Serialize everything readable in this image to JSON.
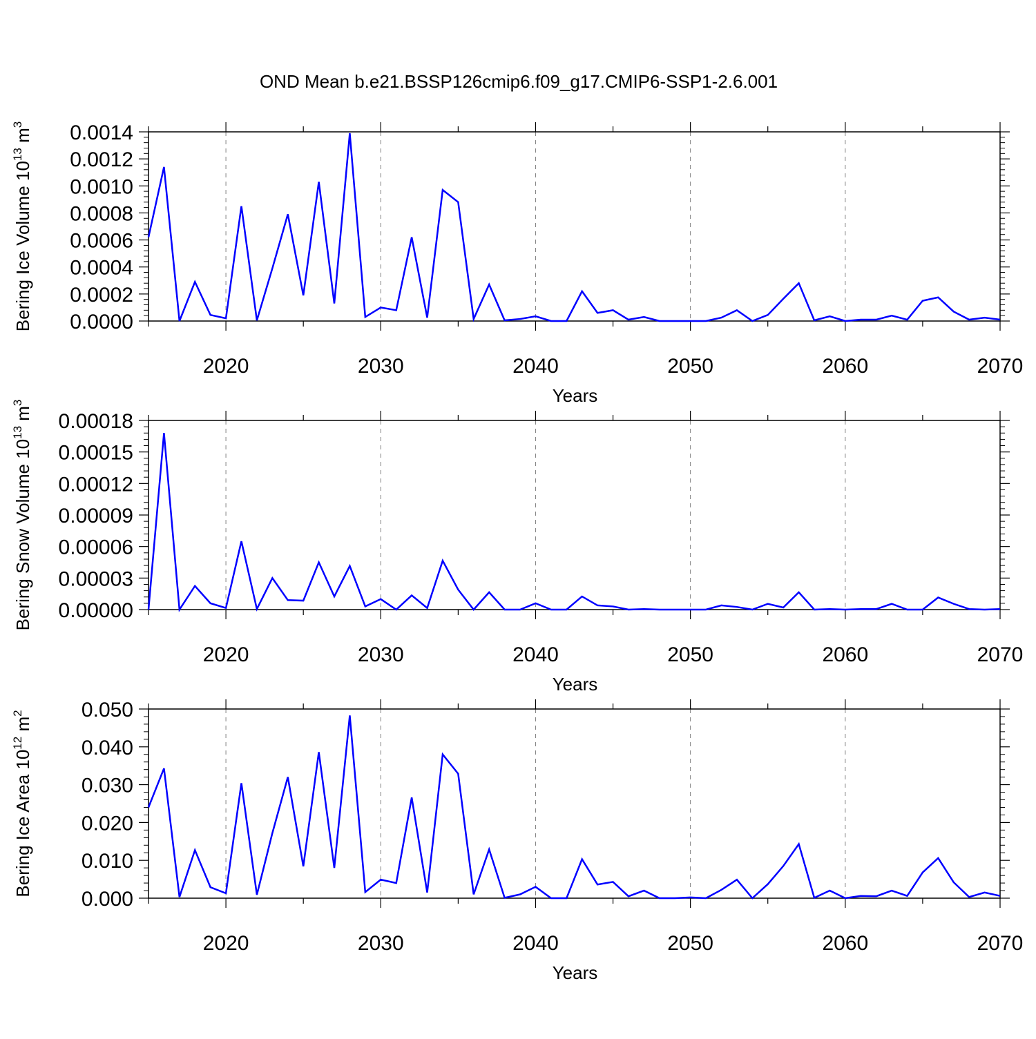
{
  "title": "OND Mean b.e21.BSSP126cmip6.f09_g17.CMIP6-SSP1-2.6.001",
  "colors": {
    "line": "#0000ff",
    "axis": "#000000",
    "grid": "#808080"
  },
  "chart_data": [
    {
      "type": "line",
      "ylabel": {
        "text": "Bering Ice Volume 10",
        "exp": "13",
        "unit": "m",
        "unit_exp": "3"
      },
      "xlabel": "Years",
      "xlim": [
        2015,
        2070
      ],
      "ylim": [
        0,
        0.0014
      ],
      "xticks": [
        2020,
        2030,
        2040,
        2050,
        2060,
        2070
      ],
      "xtick_labels": [
        "2020",
        "2030",
        "2040",
        "2050",
        "2060",
        "2070"
      ],
      "yticks": [
        0,
        0.0002,
        0.0004,
        0.0006,
        0.0008,
        0.001,
        0.0012,
        0.0014
      ],
      "ytick_labels": [
        "0.0000",
        "0.0002",
        "0.0004",
        "0.0006",
        "0.0008",
        "0.0010",
        "0.0012",
        "0.0014"
      ],
      "grid": "vertical dashed at major x ticks",
      "series": [
        {
          "x": [
            2015,
            2016,
            2017,
            2018,
            2019,
            2020,
            2021,
            2022,
            2023,
            2024,
            2025,
            2026,
            2027,
            2028,
            2029,
            2030,
            2031,
            2032,
            2033,
            2034,
            2035,
            2036,
            2037,
            2038,
            2039,
            2040,
            2041,
            2042,
            2043,
            2044,
            2045,
            2046,
            2047,
            2048,
            2049,
            2050,
            2051,
            2052,
            2053,
            2054,
            2055,
            2056,
            2057,
            2058,
            2059,
            2060,
            2061,
            2062,
            2063,
            2064,
            2065,
            2066,
            2067,
            2068,
            2069,
            2070
          ],
          "values": [
            0.00062,
            0.00114,
            0.0,
            0.00029,
            4.5e-05,
            2e-05,
            0.00085,
            5e-06,
            0.00039,
            0.00079,
            0.00019,
            0.00103,
            0.00013,
            0.00139,
            3e-05,
            0.0001,
            8e-05,
            0.00062,
            2.5e-05,
            0.00097,
            0.00088,
            1.5e-05,
            0.00027,
            5e-06,
            1.5e-05,
            3.5e-05,
            0.0,
            0.0,
            0.00022,
            6e-05,
            8e-05,
            1e-05,
            3e-05,
            0.0,
            0.0,
            0.0,
            0.0,
            2.5e-05,
            8e-05,
            0.0,
            4.5e-05,
            0.000165,
            0.00028,
            5e-06,
            3.5e-05,
            0.0,
            1e-05,
            1e-05,
            4e-05,
            1e-05,
            0.00015,
            0.000175,
            7e-05,
            1e-05,
            2.5e-05,
            1e-05
          ]
        }
      ]
    },
    {
      "type": "line",
      "ylabel": {
        "text": "Bering Snow Volume 10",
        "exp": "13",
        "unit": "m",
        "unit_exp": "3"
      },
      "xlabel": "Years",
      "xlim": [
        2015,
        2070
      ],
      "ylim": [
        0,
        0.00018
      ],
      "xticks": [
        2020,
        2030,
        2040,
        2050,
        2060,
        2070
      ],
      "xtick_labels": [
        "2020",
        "2030",
        "2040",
        "2050",
        "2060",
        "2070"
      ],
      "yticks": [
        0,
        3e-05,
        6e-05,
        9e-05,
        0.00012,
        0.00015,
        0.00018
      ],
      "ytick_labels": [
        "0.00000",
        "0.00003",
        "0.00006",
        "0.00009",
        "0.00012",
        "0.00015",
        "0.00018"
      ],
      "grid": "vertical dashed at major x ticks",
      "series": [
        {
          "x": [
            2015,
            2016,
            2017,
            2018,
            2019,
            2020,
            2021,
            2022,
            2023,
            2024,
            2025,
            2026,
            2027,
            2028,
            2029,
            2030,
            2031,
            2032,
            2033,
            2034,
            2035,
            2036,
            2037,
            2038,
            2039,
            2040,
            2041,
            2042,
            2043,
            2044,
            2045,
            2046,
            2047,
            2048,
            2049,
            2050,
            2051,
            2052,
            2053,
            2054,
            2055,
            2056,
            2057,
            2058,
            2059,
            2060,
            2061,
            2062,
            2063,
            2064,
            2065,
            2066,
            2067,
            2068,
            2069,
            2070
          ],
          "values": [
            0.0,
            0.000168,
            0.0,
            2.25e-05,
            6e-06,
            1.5e-06,
            6.5e-05,
            5e-07,
            3e-05,
            9e-06,
            8.5e-06,
            4.5e-05,
            1.25e-05,
            4.15e-05,
            3e-06,
            1e-05,
            0.0,
            1.35e-05,
            1.5e-06,
            4.65e-05,
            1.9e-05,
            0.0,
            1.65e-05,
            0.0,
            0.0,
            6e-06,
            0.0,
            0.0,
            1.25e-05,
            4e-06,
            3e-06,
            0.0,
            5e-07,
            0.0,
            0.0,
            0.0,
            0.0,
            4e-06,
            2.5e-06,
            0.0,
            5.5e-06,
            2e-06,
            1.65e-05,
            0.0,
            5e-07,
            0.0,
            5e-07,
            5e-07,
            5.5e-06,
            0.0,
            0.0,
            1.15e-05,
            5.5e-06,
            5e-07,
            0.0,
            5e-07
          ]
        }
      ]
    },
    {
      "type": "line",
      "ylabel": {
        "text": "Bering Ice Area 10",
        "exp": "12",
        "unit": "m",
        "unit_exp": "2"
      },
      "xlabel": "Years",
      "xlim": [
        2015,
        2070
      ],
      "ylim": [
        0,
        0.05
      ],
      "xticks": [
        2020,
        2030,
        2040,
        2050,
        2060,
        2070
      ],
      "xtick_labels": [
        "2020",
        "2030",
        "2040",
        "2050",
        "2060",
        "2070"
      ],
      "yticks": [
        0,
        0.01,
        0.02,
        0.03,
        0.04,
        0.05
      ],
      "ytick_labels": [
        "0.000",
        "0.010",
        "0.020",
        "0.030",
        "0.040",
        "0.050"
      ],
      "grid": "vertical dashed at major x ticks",
      "series": [
        {
          "x": [
            2015,
            2016,
            2017,
            2018,
            2019,
            2020,
            2021,
            2022,
            2023,
            2024,
            2025,
            2026,
            2027,
            2028,
            2029,
            2030,
            2031,
            2032,
            2033,
            2034,
            2035,
            2036,
            2037,
            2038,
            2039,
            2040,
            2041,
            2042,
            2043,
            2044,
            2045,
            2046,
            2047,
            2048,
            2049,
            2050,
            2051,
            2052,
            2053,
            2054,
            2055,
            2056,
            2057,
            2058,
            2059,
            2060,
            2061,
            2062,
            2063,
            2064,
            2065,
            2066,
            2067,
            2068,
            2069,
            2070
          ],
          "values": [
            0.024,
            0.0343,
            0.0003,
            0.0127,
            0.0029,
            0.0013,
            0.0304,
            0.0009,
            0.0172,
            0.032,
            0.0084,
            0.0386,
            0.008,
            0.0483,
            0.0016,
            0.0049,
            0.004,
            0.0266,
            0.0015,
            0.038,
            0.0329,
            0.001,
            0.0129,
            0.0001,
            0.001,
            0.003,
            0.0,
            0.0,
            0.0103,
            0.0036,
            0.0043,
            0.0005,
            0.002,
            0.0,
            0.0,
            0.0002,
            0.0,
            0.0022,
            0.0049,
            0.0,
            0.0037,
            0.0085,
            0.0143,
            0.0001,
            0.002,
            0.0,
            0.0006,
            0.0005,
            0.002,
            0.0006,
            0.0068,
            0.0106,
            0.0042,
            0.0003,
            0.0015,
            0.0006
          ]
        }
      ]
    }
  ]
}
